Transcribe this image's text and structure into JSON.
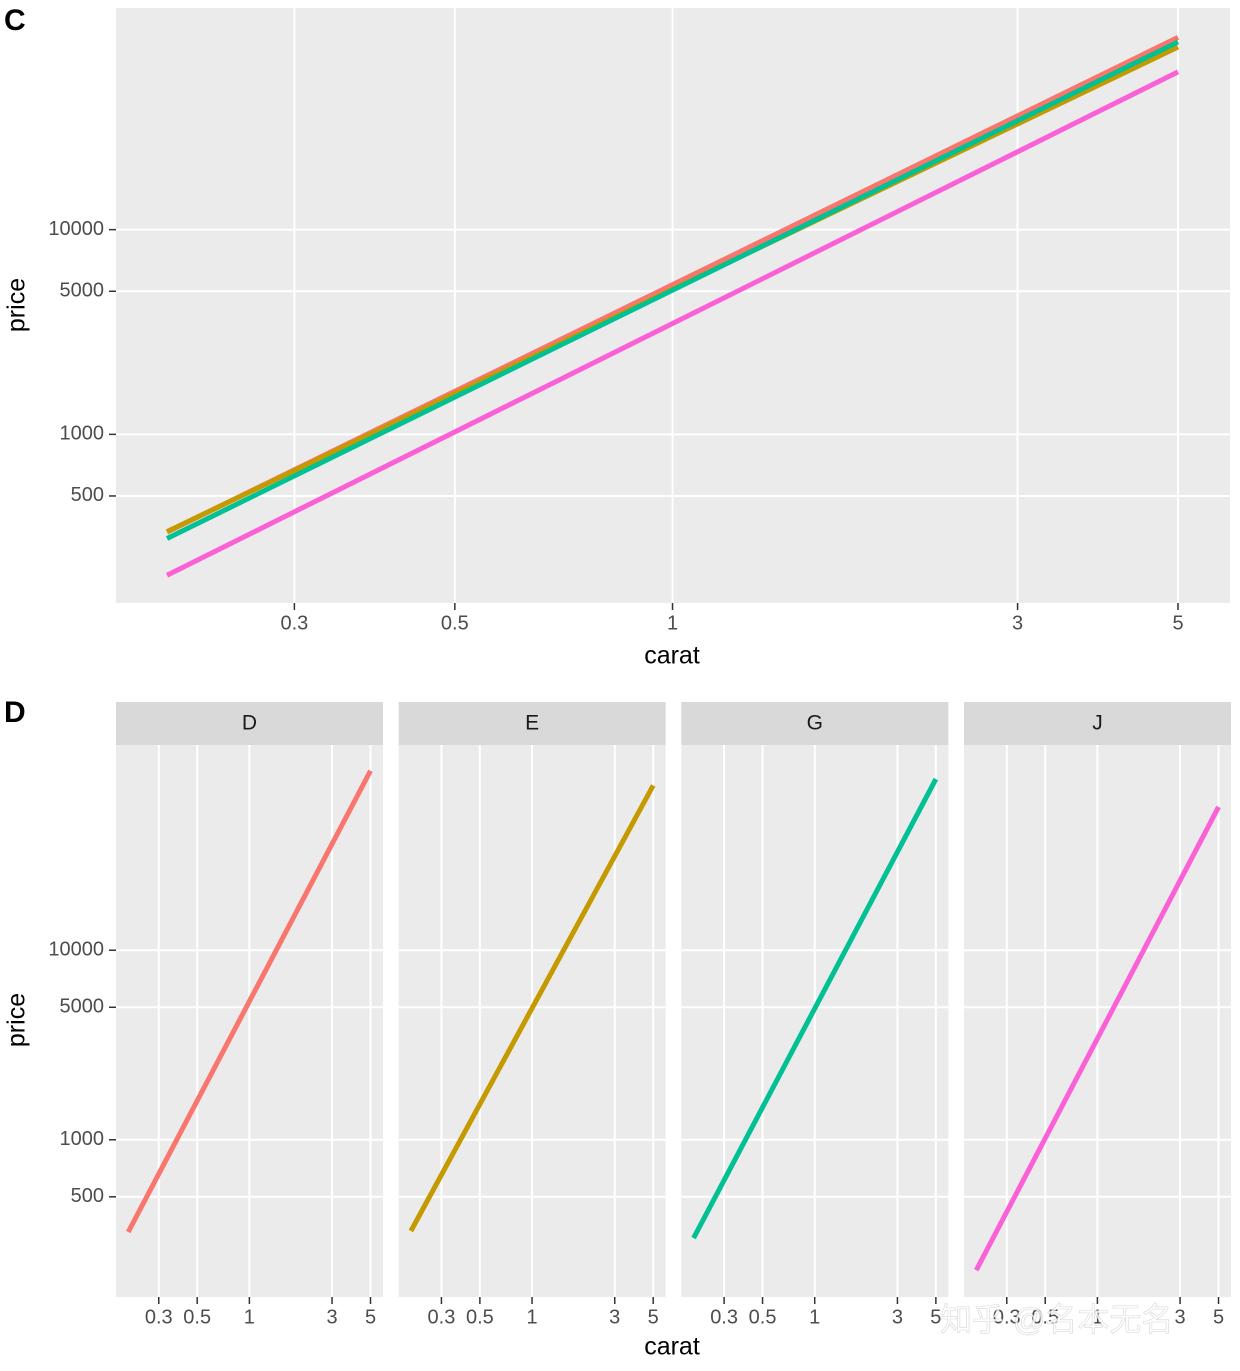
{
  "chart_data": [
    {
      "type": "line",
      "panel_label": "C",
      "x_label": "carat",
      "y_label": "price",
      "log_x": true,
      "log_y": true,
      "grid": true,
      "xlim": [
        0.17,
        5.9
      ],
      "ylim": [
        150,
        121000
      ],
      "xticks": [
        0.3,
        0.5,
        1,
        3,
        5
      ],
      "yticks": [
        500,
        1000,
        5000,
        10000
      ],
      "series": [
        {
          "color": "#F8766D",
          "x": [
            0.2,
            5
          ],
          "values": [
            333,
            87000
          ]
        },
        {
          "color": "#C49A00",
          "x": [
            0.2,
            5
          ],
          "values": [
            335,
            78000
          ]
        },
        {
          "color": "#00C094",
          "x": [
            0.2,
            5
          ],
          "values": [
            310,
            82600
          ]
        },
        {
          "color": "#FB61D7",
          "x": [
            0.2,
            5
          ],
          "values": [
            205,
            59000
          ]
        }
      ]
    },
    {
      "type": "facet-line",
      "panel_label": "D",
      "x_label": "carat",
      "y_label": "price",
      "log_x": true,
      "log_y": true,
      "grid": true,
      "xlim": [
        0.17,
        5.9
      ],
      "ylim": [
        148,
        121000
      ],
      "xticks": [
        0.3,
        0.5,
        1,
        3,
        5
      ],
      "yticks": [
        500,
        1000,
        5000,
        10000
      ],
      "facets": [
        {
          "name": "D",
          "color": "#F8766D",
          "x": [
            0.2,
            5
          ],
          "values": [
            326,
            88500
          ]
        },
        {
          "name": "E",
          "color": "#C49A00",
          "x": [
            0.2,
            5
          ],
          "values": [
            330,
            74000
          ]
        },
        {
          "name": "G",
          "color": "#00C094",
          "x": [
            0.2,
            5
          ],
          "values": [
            303,
            80000
          ]
        },
        {
          "name": "J",
          "color": "#FB61D7",
          "x": [
            0.2,
            5
          ],
          "values": [
            205,
            57000
          ]
        }
      ]
    }
  ],
  "watermark": "知乎 @名本无名"
}
